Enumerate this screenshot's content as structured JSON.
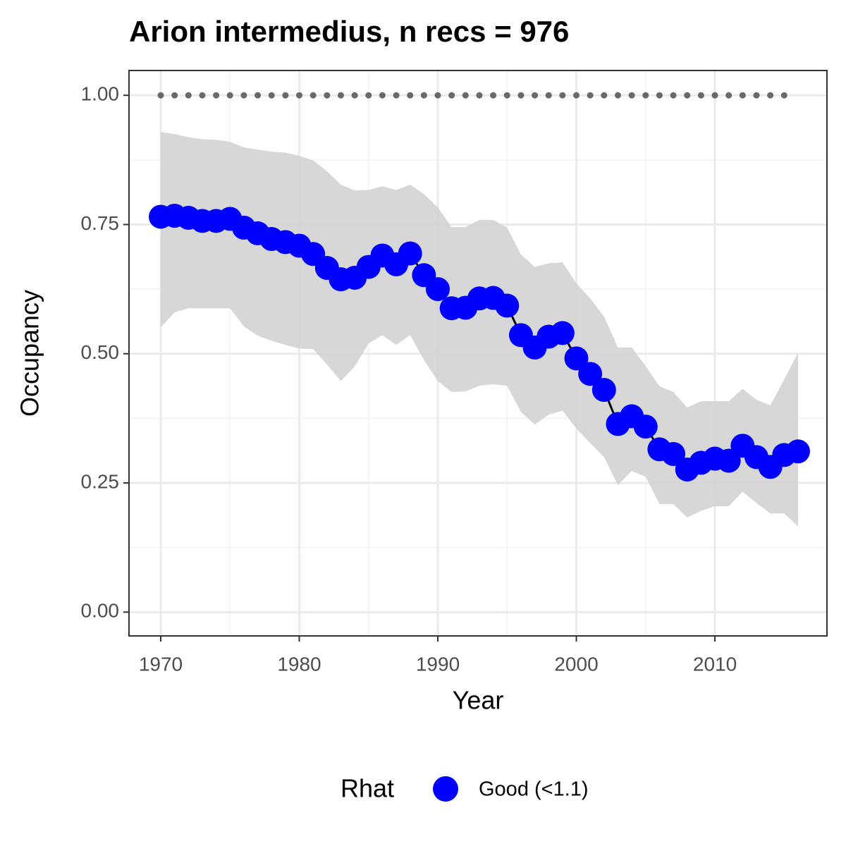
{
  "chart_data": {
    "type": "line",
    "title": "Arion intermedius, n recs = 976",
    "x_label": "Year",
    "y_label": "Occupancy",
    "x": [
      1970,
      1971,
      1972,
      1973,
      1974,
      1975,
      1976,
      1977,
      1978,
      1979,
      1980,
      1981,
      1982,
      1983,
      1984,
      1985,
      1986,
      1987,
      1988,
      1989,
      1990,
      1991,
      1992,
      1993,
      1994,
      1995,
      1996,
      1997,
      1998,
      1999,
      2000,
      2001,
      2002,
      2003,
      2004,
      2005,
      2006,
      2007,
      2008,
      2009,
      2010,
      2011,
      2012,
      2013,
      2014,
      2015,
      2016
    ],
    "series": [
      {
        "name": "Good (<1.1)",
        "color": "#0000ff",
        "line_color": "#000000",
        "values": [
          0.765,
          0.767,
          0.763,
          0.757,
          0.757,
          0.761,
          0.744,
          0.733,
          0.722,
          0.716,
          0.709,
          0.693,
          0.666,
          0.644,
          0.647,
          0.668,
          0.69,
          0.673,
          0.694,
          0.652,
          0.625,
          0.588,
          0.589,
          0.607,
          0.608,
          0.593,
          0.536,
          0.512,
          0.533,
          0.54,
          0.491,
          0.461,
          0.43,
          0.364,
          0.379,
          0.359,
          0.315,
          0.306,
          0.276,
          0.289,
          0.297,
          0.293,
          0.322,
          0.3,
          0.281,
          0.304,
          0.311
        ]
      }
    ],
    "band": {
      "color": "#d3d3d3",
      "upper": [
        0.929,
        0.925,
        0.919,
        0.915,
        0.914,
        0.91,
        0.899,
        0.895,
        0.891,
        0.889,
        0.883,
        0.874,
        0.853,
        0.827,
        0.816,
        0.817,
        0.824,
        0.817,
        0.827,
        0.809,
        0.783,
        0.745,
        0.745,
        0.759,
        0.759,
        0.744,
        0.692,
        0.668,
        0.675,
        0.677,
        0.636,
        0.607,
        0.572,
        0.512,
        0.512,
        0.476,
        0.437,
        0.426,
        0.396,
        0.408,
        0.408,
        0.408,
        0.432,
        0.411,
        0.4,
        0.45,
        0.502
      ],
      "lower": [
        0.551,
        0.58,
        0.588,
        0.588,
        0.588,
        0.588,
        0.553,
        0.535,
        0.525,
        0.517,
        0.51,
        0.509,
        0.479,
        0.447,
        0.475,
        0.52,
        0.536,
        0.517,
        0.536,
        0.488,
        0.447,
        0.426,
        0.427,
        0.438,
        0.441,
        0.438,
        0.387,
        0.363,
        0.382,
        0.39,
        0.355,
        0.327,
        0.3,
        0.246,
        0.273,
        0.262,
        0.209,
        0.209,
        0.183,
        0.196,
        0.205,
        0.205,
        0.233,
        0.211,
        0.191,
        0.191,
        0.166
      ]
    },
    "dots": {
      "color": "#696969",
      "x": [
        1970,
        1971,
        1972,
        1973,
        1974,
        1975,
        1976,
        1977,
        1978,
        1979,
        1980,
        1981,
        1982,
        1983,
        1984,
        1985,
        1986,
        1987,
        1988,
        1989,
        1990,
        1991,
        1992,
        1993,
        1994,
        1995,
        1996,
        1997,
        1998,
        1999,
        2000,
        2001,
        2002,
        2003,
        2004,
        2005,
        2006,
        2007,
        2008,
        2009,
        2010,
        2011,
        2012,
        2013,
        2014,
        2015
      ],
      "values": [
        1,
        1,
        1,
        1,
        1,
        1,
        1,
        1,
        1,
        1,
        1,
        1,
        1,
        1,
        1,
        1,
        1,
        1,
        1,
        1,
        1,
        1,
        1,
        1,
        1,
        1,
        1,
        1,
        1,
        1,
        1,
        1,
        1,
        1,
        1,
        1,
        1,
        1,
        1,
        1,
        1,
        1,
        1,
        1,
        1,
        1
      ]
    },
    "legend_title": "Rhat",
    "legend_position": "bottom",
    "grid": true,
    "xlim": [
      1967.71,
      2018.09
    ],
    "ylim": [
      -0.046,
      1.048
    ],
    "xticks": [
      1970,
      1980,
      1990,
      2000,
      2010
    ],
    "yticks": [
      {
        "value": 0,
        "label": "0.00"
      },
      {
        "value": 0.25,
        "label": "0.25"
      },
      {
        "value": 0.5,
        "label": "0.50"
      },
      {
        "value": 0.75,
        "label": "0.75"
      },
      {
        "value": 1,
        "label": "1.00"
      }
    ]
  }
}
